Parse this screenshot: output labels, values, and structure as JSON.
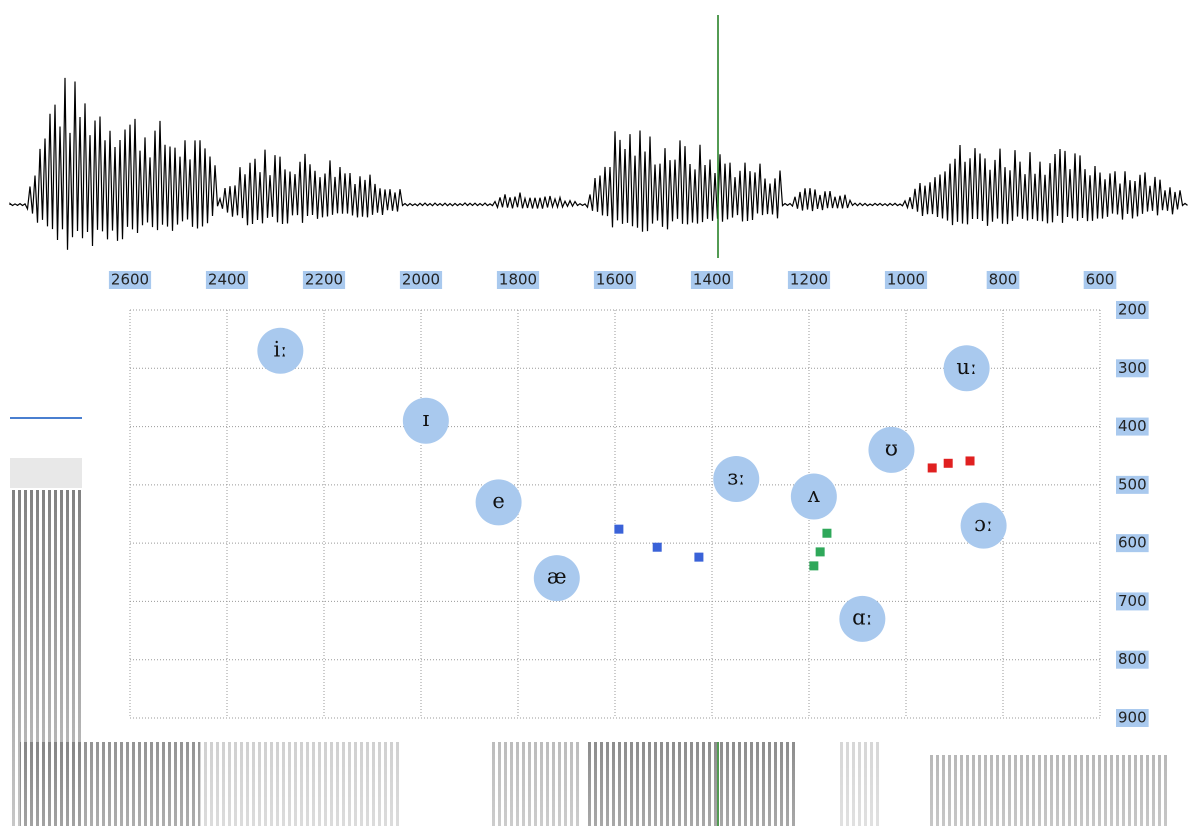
{
  "chart_data": {
    "type": "scatter",
    "xlim": [
      2600,
      600
    ],
    "xticks": [
      2600,
      2400,
      2200,
      2000,
      1800,
      1600,
      1400,
      1200,
      1000,
      800,
      600
    ],
    "ylim": [
      200,
      900
    ],
    "yticks": [
      200,
      300,
      400,
      500,
      600,
      700,
      800,
      900
    ],
    "grid": true,
    "vowels": {
      "color": "#a9c9ee",
      "labels": [
        "iː",
        "ɪ",
        "e",
        "æ",
        "ɜː",
        "ʌ",
        "ʊ",
        "uː",
        "ɔː",
        "ɑː"
      ],
      "x": [
        2290,
        1990,
        1840,
        1720,
        1350,
        1190,
        1030,
        875,
        840,
        1090
      ],
      "y": [
        270,
        390,
        530,
        660,
        490,
        520,
        440,
        300,
        570,
        730
      ]
    },
    "series": [
      {
        "color": "#3a62d8",
        "x": [
          1592,
          1513,
          1427
        ],
        "values": [
          576,
          607,
          624
        ]
      },
      {
        "color": "#2fa85a",
        "x": [
          1163,
          1177,
          1190
        ],
        "values": [
          583,
          615,
          639
        ]
      },
      {
        "color": "#e02020",
        "x": [
          946,
          913,
          868
        ],
        "values": [
          471,
          463,
          459
        ]
      }
    ]
  }
}
